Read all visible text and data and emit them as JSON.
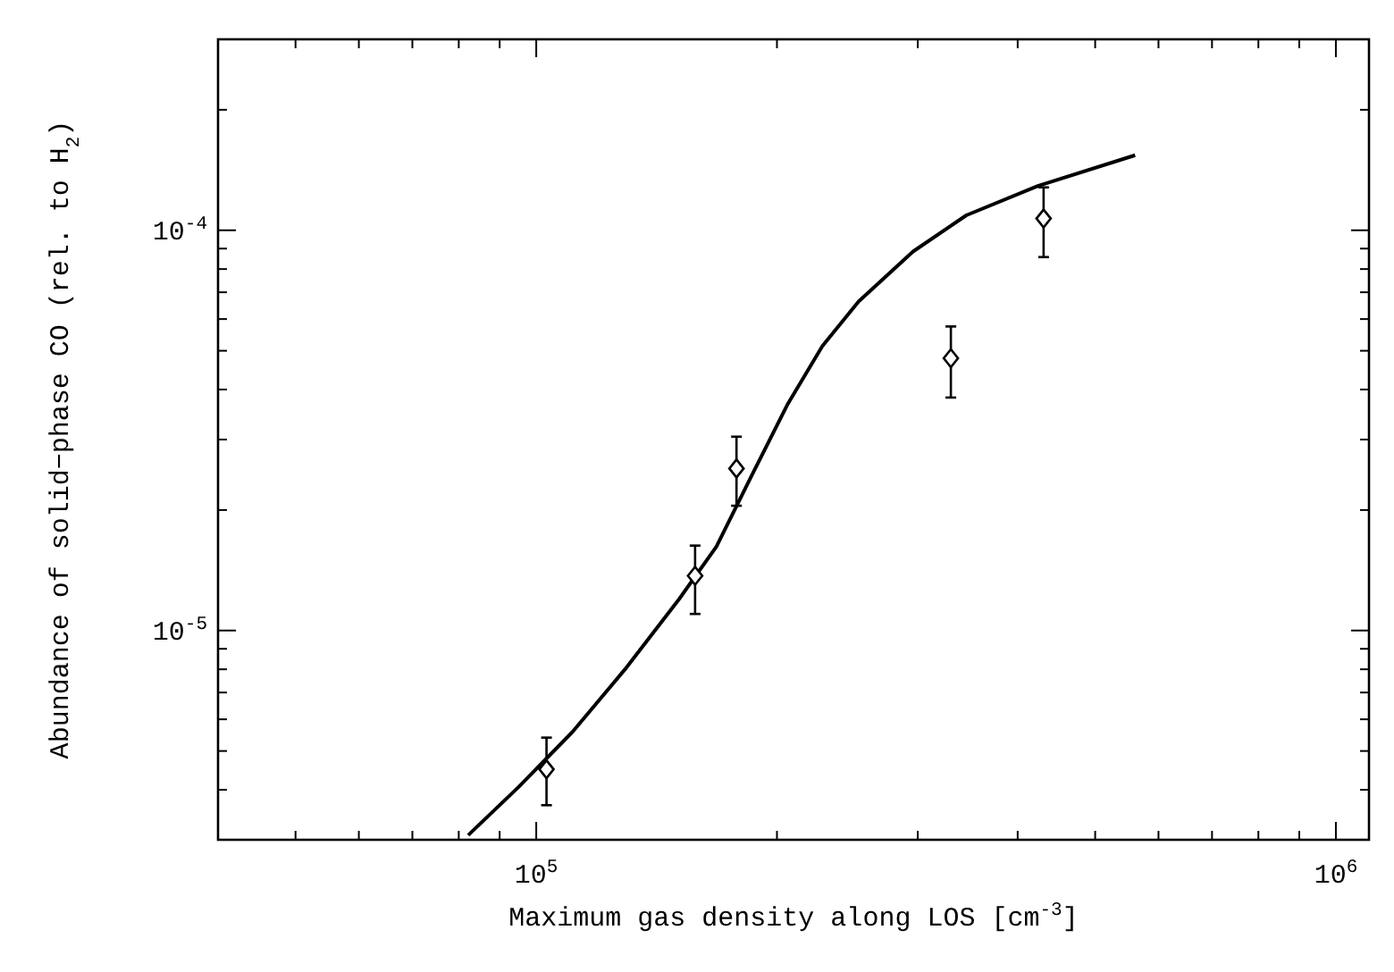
{
  "chart_data": {
    "type": "scatter",
    "xlabel": "Maximum gas density along LOS [cm$^{-3}$]",
    "ylabel": "Abundance of solid−phase CO (rel. to H$_{2}$)",
    "log": "xy",
    "grid": false,
    "xlim": [
      40000,
      1100000
    ],
    "ylim": [
      3e-06,
      0.0003
    ],
    "xticks": [
      {
        "value": 50000,
        "label": null
      },
      {
        "value": 60000,
        "label": null
      },
      {
        "value": 70000,
        "label": null
      },
      {
        "value": 80000,
        "label": null
      },
      {
        "value": 90000,
        "label": null
      },
      {
        "value": 100000,
        "label": "10$^{5}$"
      },
      {
        "value": 200000,
        "label": null
      },
      {
        "value": 300000,
        "label": null
      },
      {
        "value": 400000,
        "label": null
      },
      {
        "value": 500000,
        "label": null
      },
      {
        "value": 600000,
        "label": null
      },
      {
        "value": 700000,
        "label": null
      },
      {
        "value": 800000,
        "label": null
      },
      {
        "value": 900000,
        "label": null
      },
      {
        "value": 1000000,
        "label": "10$^{6}$"
      }
    ],
    "yticks": [
      {
        "value": 4e-06,
        "label": null
      },
      {
        "value": 5e-06,
        "label": null
      },
      {
        "value": 6e-06,
        "label": null
      },
      {
        "value": 7e-06,
        "label": null
      },
      {
        "value": 8e-06,
        "label": null
      },
      {
        "value": 9e-06,
        "label": null
      },
      {
        "value": 1e-05,
        "label": "10$^{-5}$"
      },
      {
        "value": 2e-05,
        "label": null
      },
      {
        "value": 3e-05,
        "label": null
      },
      {
        "value": 4e-05,
        "label": null
      },
      {
        "value": 5e-05,
        "label": null
      },
      {
        "value": 6e-05,
        "label": null
      },
      {
        "value": 7e-05,
        "label": null
      },
      {
        "value": 8e-05,
        "label": null
      },
      {
        "value": 9e-05,
        "label": null
      },
      {
        "value": 0.0001,
        "label": "10$^{-4}$"
      },
      {
        "value": 0.0002,
        "label": null
      },
      {
        "value": 0.0003,
        "label": null
      }
    ],
    "series": [
      {
        "type": "line",
        "color": "#000000",
        "line_style": "solid",
        "marker": "none",
        "x": [
          82200,
          95000,
          111000,
          129000,
          151000,
          168000,
          186000,
          206000,
          228000,
          253000,
          296000,
          345000,
          424000,
          561000
        ],
        "values": [
          3.08e-06,
          4.06e-06,
          5.58e-06,
          7.98e-06,
          1.2e-05,
          1.62e-05,
          2.44e-05,
          3.66e-05,
          5.14e-05,
          6.64e-05,
          8.85e-05,
          0.000109,
          0.000129,
          0.000154
        ]
      },
      {
        "color": "#000000",
        "marker": "diamond",
        "x": [
          103000,
          158000,
          178000,
          330000,
          431000
        ],
        "values": [
          4.5e-06,
          1.37e-05,
          2.54e-05,
          4.79e-05,
          0.000107
        ],
        "errors": [
          [
            3.66e-06,
            5.4e-06
          ],
          [
            1.1e-05,
            1.63e-05
          ],
          [
            2.05e-05,
            3.05e-05
          ],
          [
            3.82e-05,
            5.75e-05
          ],
          [
            8.57e-05,
            0.000128
          ]
        ]
      }
    ]
  }
}
